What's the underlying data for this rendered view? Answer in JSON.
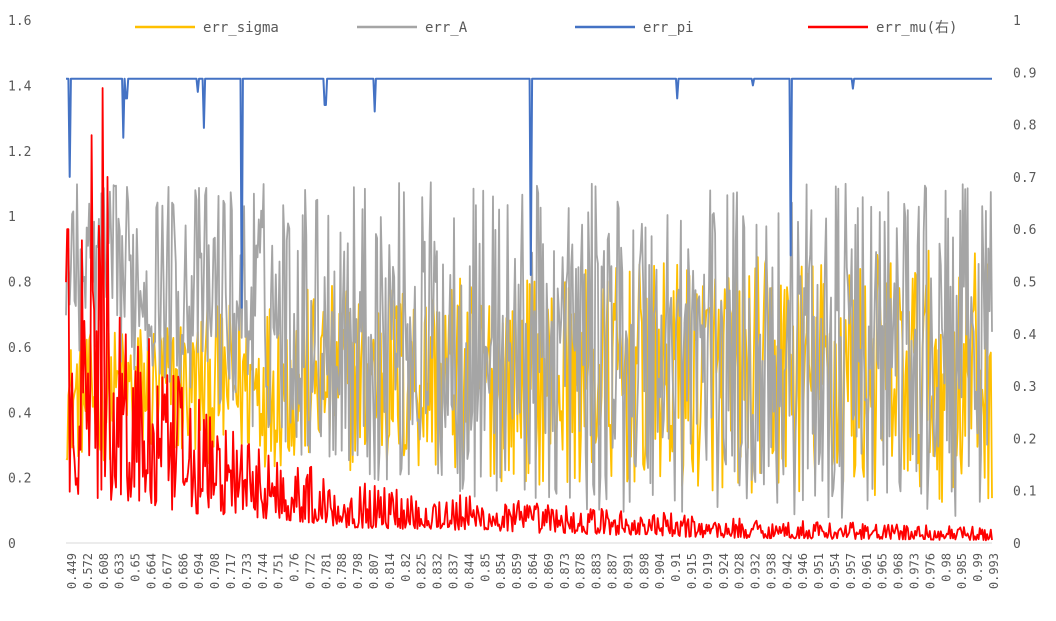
{
  "chart_data": {
    "type": "line",
    "title": "",
    "y_left": {
      "min": 0,
      "max": 1.6,
      "ticks": [
        "0",
        "0.2",
        "0.4",
        "0.6",
        "0.8",
        "1",
        "1.2",
        "1.4",
        "1.6"
      ]
    },
    "y_right": {
      "min": 0,
      "max": 1,
      "ticks": [
        "0",
        "0.1",
        "0.2",
        "0.3",
        "0.4",
        "0.5",
        "0.6",
        "0.7",
        "0.8",
        "0.9",
        "1"
      ]
    },
    "x_tick_labels": [
      "0.449",
      "0.572",
      "0.608",
      "0.633",
      "0.65",
      "0.664",
      "0.677",
      "0.686",
      "0.694",
      "0.708",
      "0.717",
      "0.733",
      "0.744",
      "0.751",
      "0.76",
      "0.772",
      "0.781",
      "0.788",
      "0.798",
      "0.807",
      "0.814",
      "0.82",
      "0.825",
      "0.832",
      "0.837",
      "0.844",
      "0.85",
      "0.854",
      "0.859",
      "0.864",
      "0.869",
      "0.873",
      "0.878",
      "0.883",
      "0.887",
      "0.891",
      "0.898",
      "0.904",
      "0.91",
      "0.915",
      "0.919",
      "0.924",
      "0.928",
      "0.932",
      "0.938",
      "0.942",
      "0.946",
      "0.951",
      "0.954",
      "0.957",
      "0.961",
      "0.965",
      "0.968",
      "0.973",
      "0.976",
      "0.98",
      "0.985",
      "0.99",
      "0.993"
    ],
    "legend_position": "top",
    "grid": false,
    "num_points": 760,
    "series": [
      {
        "name": "err_sigma",
        "axis": "left",
        "color": "#FFC000",
        "profile": [
          {
            "x": 0.0,
            "low": 0.25,
            "high": 0.62
          },
          {
            "x": 0.1,
            "low": 0.25,
            "high": 0.7
          },
          {
            "x": 0.3,
            "low": 0.22,
            "high": 0.8
          },
          {
            "x": 0.5,
            "low": 0.18,
            "high": 0.82
          },
          {
            "x": 0.7,
            "low": 0.15,
            "high": 0.88
          },
          {
            "x": 1.0,
            "low": 0.12,
            "high": 0.9
          }
        ]
      },
      {
        "name": "err_A",
        "axis": "left",
        "color": "#A5A5A5",
        "profile": [
          {
            "x": 0.0,
            "low": 0.6,
            "high": 1.1
          },
          {
            "x": 0.1,
            "low": 0.5,
            "high": 1.1
          },
          {
            "x": 0.3,
            "low": 0.2,
            "high": 1.12
          },
          {
            "x": 0.5,
            "low": 0.1,
            "high": 1.1
          },
          {
            "x": 0.7,
            "low": 0.08,
            "high": 1.1
          },
          {
            "x": 1.0,
            "low": 0.06,
            "high": 1.1
          }
        ]
      },
      {
        "name": "err_pi",
        "axis": "left",
        "color": "#4472C4",
        "baseline": 1.42,
        "dips": [
          {
            "x": 0.004,
            "value": 1.12
          },
          {
            "x": 0.062,
            "value": 1.24
          },
          {
            "x": 0.065,
            "value": 1.36
          },
          {
            "x": 0.142,
            "value": 1.38
          },
          {
            "x": 0.149,
            "value": 1.27
          },
          {
            "x": 0.19,
            "value": 0.72
          },
          {
            "x": 0.28,
            "value": 1.34
          },
          {
            "x": 0.333,
            "value": 1.32
          },
          {
            "x": 0.502,
            "value": 0.82
          },
          {
            "x": 0.66,
            "value": 1.36
          },
          {
            "x": 0.742,
            "value": 1.4
          },
          {
            "x": 0.783,
            "value": 0.88
          },
          {
            "x": 0.85,
            "value": 1.39
          }
        ]
      },
      {
        "name": "err_mu(右)",
        "axis": "right",
        "color": "#FF0000",
        "profile": [
          {
            "x": 0.0,
            "low": 0.1,
            "high": 0.55
          },
          {
            "x": 0.04,
            "low": 0.08,
            "high": 0.62
          },
          {
            "x": 0.1,
            "low": 0.06,
            "high": 0.35
          },
          {
            "x": 0.2,
            "low": 0.05,
            "high": 0.2
          },
          {
            "x": 0.3,
            "low": 0.03,
            "high": 0.12
          },
          {
            "x": 0.5,
            "low": 0.02,
            "high": 0.08
          },
          {
            "x": 0.7,
            "low": 0.01,
            "high": 0.05
          },
          {
            "x": 1.0,
            "low": 0.005,
            "high": 0.03
          }
        ],
        "peaks": [
          {
            "x": 0.04,
            "value": 0.87
          },
          {
            "x": 0.028,
            "value": 0.78
          },
          {
            "x": 0.002,
            "value": 0.6
          },
          {
            "x": 0.045,
            "value": 0.7
          }
        ]
      }
    ]
  }
}
